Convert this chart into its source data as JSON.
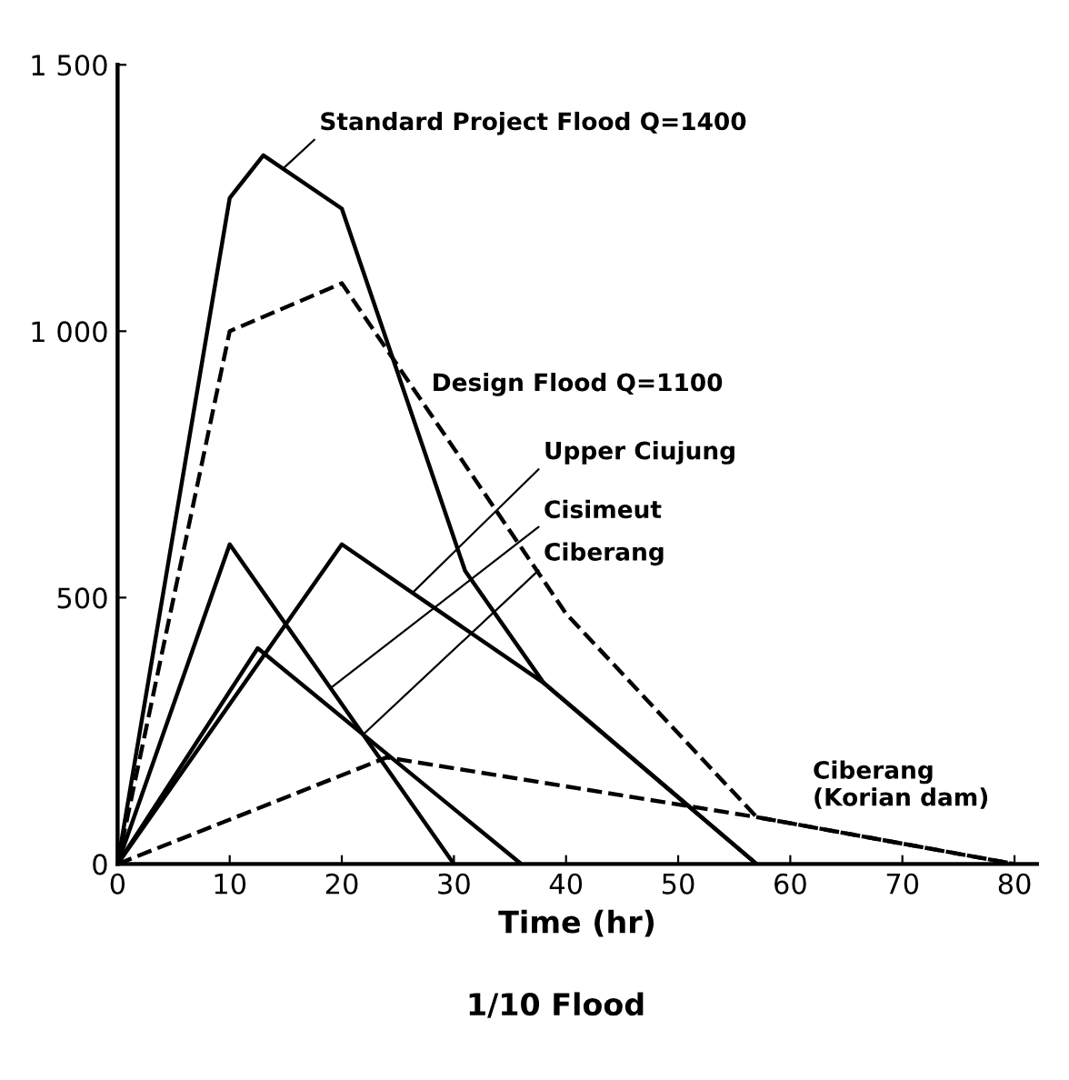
{
  "chart_data": {
    "type": "line",
    "title": "1/10 Flood",
    "xlabel": "Time (hr)",
    "xlim": [
      0,
      82
    ],
    "xticks": [
      0,
      10,
      20,
      30,
      40,
      50,
      60,
      70,
      80
    ],
    "ylim": [
      0,
      1500
    ],
    "yticks": [
      0,
      500,
      {
        "value": 1000,
        "label": "1 000"
      },
      {
        "value": 1500,
        "label": "1 500"
      }
    ],
    "grid": false,
    "legend": false,
    "marker": "none",
    "series": [
      {
        "name": "Standard Project Flood Q=1400",
        "color": "#000000",
        "line_style": "solid",
        "x": [
          0,
          10,
          13,
          20,
          31,
          38,
          57
        ],
        "values": [
          0,
          1250,
          1330,
          1230,
          550,
          340,
          0
        ]
      },
      {
        "name": "Design Flood Q=1100",
        "color": "#000000",
        "line_style": "dashed",
        "x": [
          0,
          10,
          20,
          40,
          57,
          80
        ],
        "values": [
          0,
          1000,
          1090,
          470,
          88,
          0
        ]
      },
      {
        "name": "Upper Ciujung",
        "color": "#000000",
        "line_style": "solid",
        "x": [
          0,
          20,
          38,
          57
        ],
        "values": [
          0,
          600,
          340,
          0
        ]
      },
      {
        "name": "Cisimeut",
        "color": "#000000",
        "line_style": "solid",
        "x": [
          0,
          10,
          30
        ],
        "values": [
          0,
          600,
          0
        ]
      },
      {
        "name": "Ciberang",
        "color": "#000000",
        "line_style": "solid",
        "x": [
          0,
          12.5,
          36
        ],
        "values": [
          0,
          405,
          0
        ]
      },
      {
        "name": "Ciberang\n(Korian dam)",
        "color": "#000000",
        "line_style": "dashed",
        "x": [
          0,
          24,
          57,
          80
        ],
        "values": [
          0,
          200,
          88,
          0
        ]
      }
    ]
  }
}
